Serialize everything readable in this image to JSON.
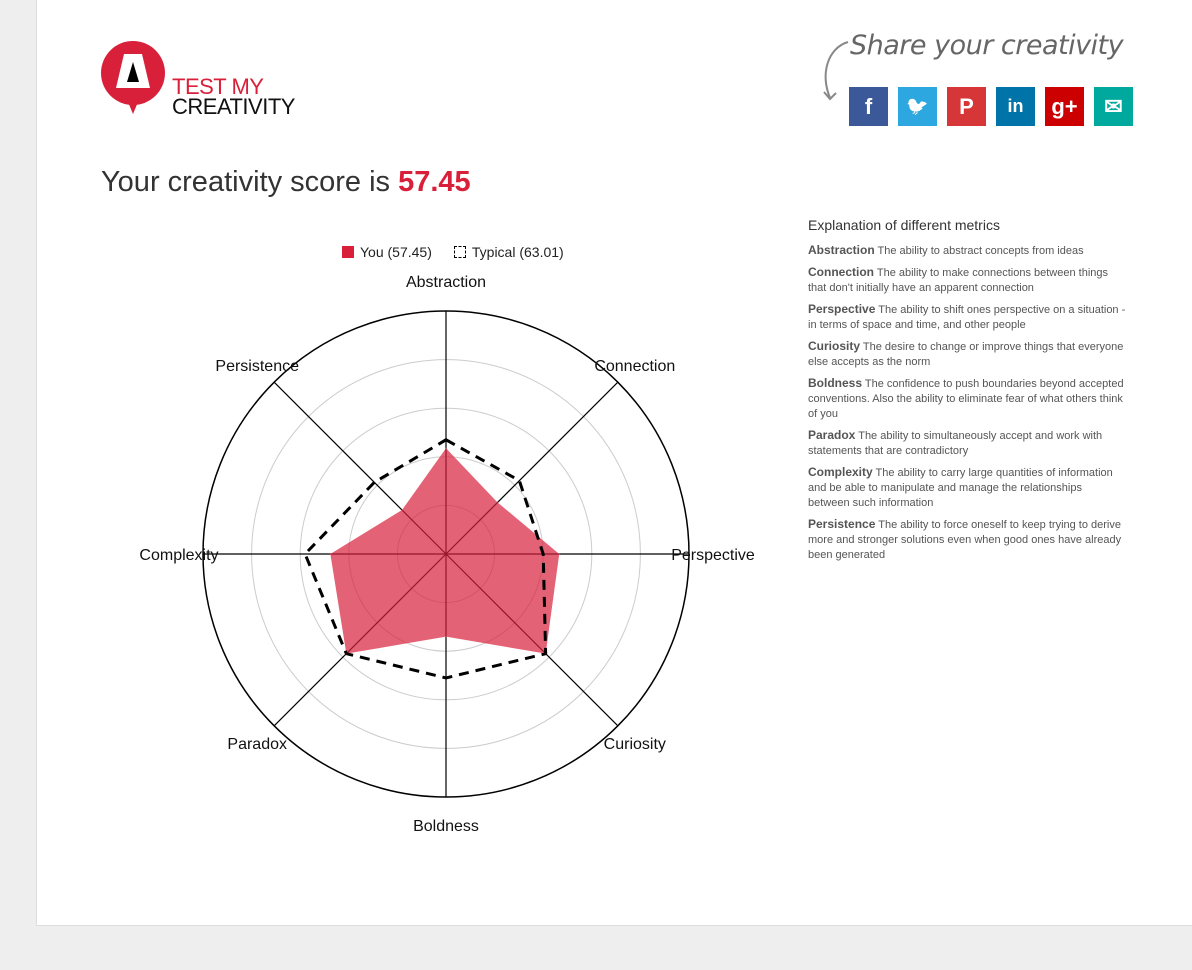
{
  "header": {
    "logo_line1": "TEST MY",
    "logo_line2": "CREATIVITY",
    "share_title": "Share your creativity",
    "social": [
      {
        "name": "facebook",
        "glyph": "f",
        "color": "#3b5998"
      },
      {
        "name": "twitter",
        "glyph": "🐦",
        "color": "#2ca7e0"
      },
      {
        "name": "pinterest",
        "glyph": "P",
        "color": "#d63638"
      },
      {
        "name": "linkedin",
        "glyph": "in",
        "color": "#0073a8"
      },
      {
        "name": "google-plus",
        "glyph": "g+",
        "color": "#cc0000"
      },
      {
        "name": "email",
        "glyph": "✉",
        "color": "#00a99d"
      }
    ]
  },
  "score": {
    "prefix": "Your creativity score is ",
    "value": "57.45"
  },
  "explanation": {
    "title": "Explanation of different metrics",
    "items": [
      {
        "term": "Abstraction",
        "text": "The ability to abstract concepts from ideas"
      },
      {
        "term": "Connection",
        "text": "The ability to make connections between things that don't initially have an apparent connection"
      },
      {
        "term": "Perspective",
        "text": "The ability to shift ones perspective on a situation - in terms of space and time, and other people"
      },
      {
        "term": "Curiosity",
        "text": "The desire to change or improve things that everyone else accepts as the norm"
      },
      {
        "term": "Boldness",
        "text": "The confidence to push boundaries beyond accepted conventions. Also the ability to eliminate fear of what others think of you"
      },
      {
        "term": "Paradox",
        "text": "The ability to simultaneously accept and work with statements that are contradictory"
      },
      {
        "term": "Complexity",
        "text": "The ability to carry large quantities of information and be able to manipulate and manage the relationships between such information"
      },
      {
        "term": "Persistence",
        "text": "The ability to force oneself to keep trying to derive more and stronger solutions even when good ones have already been generated"
      }
    ]
  },
  "chart_data": {
    "type": "radar",
    "categories": [
      "Abstraction",
      "Connection",
      "Perspective",
      "Curiosity",
      "Boldness",
      "Paradox",
      "Complexity",
      "Persistence"
    ],
    "rlim": [
      0,
      100
    ],
    "grid_rings": [
      20,
      40,
      60,
      80,
      100
    ],
    "legend_placement": "top",
    "series": [
      {
        "name": "You (57.45)",
        "values": [
          43.5,
          30,
          46.6,
          58,
          34,
          58,
          47.6,
          25.6
        ],
        "color": "#e0414f",
        "style": "filled"
      },
      {
        "name": "Typical (63.01)",
        "values": [
          47,
          42.7,
          40,
          58,
          51,
          58,
          58,
          41.7
        ],
        "color": "#000000",
        "style": "dashed"
      }
    ]
  }
}
